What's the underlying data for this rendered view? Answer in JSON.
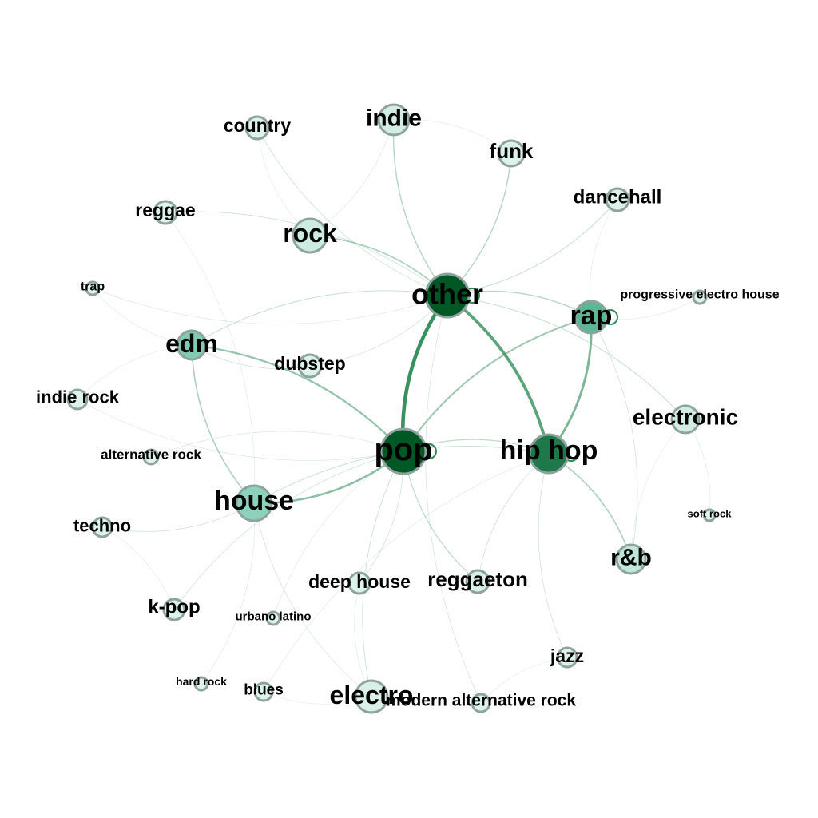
{
  "graph": {
    "nodes": [
      {
        "id": "other",
        "label": "other",
        "weight": 1.0
      },
      {
        "id": "pop",
        "label": "pop",
        "weight": 1.0
      },
      {
        "id": "hip hop",
        "label": "hip hop",
        "weight": 0.85
      },
      {
        "id": "rap",
        "label": "rap",
        "weight": 0.55
      },
      {
        "id": "edm",
        "label": "edm",
        "weight": 0.4
      },
      {
        "id": "house",
        "label": "house",
        "weight": 0.35
      },
      {
        "id": "rock",
        "label": "rock",
        "weight": 0.1
      },
      {
        "id": "indie",
        "label": "indie",
        "weight": 0.08
      },
      {
        "id": "electronic",
        "label": "electronic",
        "weight": 0.08
      },
      {
        "id": "r&b",
        "label": "r&b",
        "weight": 0.15
      },
      {
        "id": "electro",
        "label": "electro",
        "weight": 0.05
      },
      {
        "id": "reggaeton",
        "label": "reggaeton",
        "weight": 0.05
      },
      {
        "id": "funk",
        "label": "funk",
        "weight": 0.04
      },
      {
        "id": "dancehall",
        "label": "dancehall",
        "weight": 0.04
      },
      {
        "id": "country",
        "label": "country",
        "weight": 0.03
      },
      {
        "id": "reggae",
        "label": "reggae",
        "weight": 0.03
      },
      {
        "id": "dubstep",
        "label": "dubstep",
        "weight": 0.03
      },
      {
        "id": "deep house",
        "label": "deep house",
        "weight": 0.03
      },
      {
        "id": "k-pop",
        "label": "k-pop",
        "weight": 0.03
      },
      {
        "id": "techno",
        "label": "techno",
        "weight": 0.03
      },
      {
        "id": "indie rock",
        "label": "indie rock",
        "weight": 0.03
      },
      {
        "id": "jazz",
        "label": "jazz",
        "weight": 0.03
      },
      {
        "id": "modern alternative rock",
        "label": "modern alternative rock",
        "weight": 0.03
      },
      {
        "id": "blues",
        "label": "blues",
        "weight": 0.03
      },
      {
        "id": "trap",
        "label": "trap",
        "weight": 0.02
      },
      {
        "id": "alternative rock",
        "label": "alternative rock",
        "weight": 0.02
      },
      {
        "id": "urbano latino",
        "label": "urbano latino",
        "weight": 0.02
      },
      {
        "id": "hard rock",
        "label": "hard rock",
        "weight": 0.02
      },
      {
        "id": "soft rock",
        "label": "soft rock",
        "weight": 0.02
      },
      {
        "id": "progressive electro house",
        "label": "progressive electro house",
        "weight": 0.02
      }
    ],
    "edges": [
      {
        "source": "other",
        "target": "pop",
        "weight": 1.0
      },
      {
        "source": "other",
        "target": "hip hop",
        "weight": 0.8
      },
      {
        "source": "hip hop",
        "target": "rap",
        "weight": 0.6
      },
      {
        "source": "pop",
        "target": "house",
        "weight": 0.5
      },
      {
        "source": "pop",
        "target": "edm",
        "weight": 0.45
      },
      {
        "source": "pop",
        "target": "rap",
        "weight": 0.4
      },
      {
        "source": "other",
        "target": "rock",
        "weight": 0.3
      },
      {
        "source": "other",
        "target": "indie",
        "weight": 0.25
      },
      {
        "source": "other",
        "target": "funk",
        "weight": 0.25
      },
      {
        "source": "hip hop",
        "target": "r&b",
        "weight": 0.3
      },
      {
        "source": "edm",
        "target": "house",
        "weight": 0.3
      },
      {
        "source": "other",
        "target": "rap",
        "weight": 0.25
      },
      {
        "source": "pop",
        "target": "reggaeton",
        "weight": 0.2
      },
      {
        "source": "pop",
        "target": "hip hop",
        "weight": 0.2
      },
      {
        "source": "other",
        "target": "edm",
        "weight": 0.15
      },
      {
        "source": "other",
        "target": "electronic",
        "weight": 0.15
      },
      {
        "source": "other",
        "target": "dancehall",
        "weight": 0.15
      },
      {
        "source": "house",
        "target": "hip hop",
        "weight": 0.15
      },
      {
        "source": "pop",
        "target": "electro",
        "weight": 0.12
      },
      {
        "source": "other",
        "target": "country",
        "weight": 0.1
      },
      {
        "source": "other",
        "target": "reggae",
        "weight": 0.1
      },
      {
        "source": "other",
        "target": "dubstep",
        "weight": 0.1
      },
      {
        "source": "hip hop",
        "target": "jazz",
        "weight": 0.1
      },
      {
        "source": "pop",
        "target": "deep house",
        "weight": 0.1
      },
      {
        "source": "pop",
        "target": "k-pop",
        "weight": 0.1
      },
      {
        "source": "house",
        "target": "techno",
        "weight": 0.1
      },
      {
        "source": "edm",
        "target": "dubstep",
        "weight": 0.1
      },
      {
        "source": "rap",
        "target": "r&b",
        "weight": 0.1
      },
      {
        "source": "hip hop",
        "target": "reggaeton",
        "weight": 0.1
      },
      {
        "source": "electro",
        "target": "house",
        "weight": 0.08
      },
      {
        "source": "other",
        "target": "modern alternative rock",
        "weight": 0.08
      },
      {
        "source": "pop",
        "target": "indie rock",
        "weight": 0.06
      },
      {
        "source": "pop",
        "target": "alternative rock",
        "weight": 0.06
      },
      {
        "source": "other",
        "target": "trap",
        "weight": 0.05
      },
      {
        "source": "rap",
        "target": "progressive electro house",
        "weight": 0.05
      },
      {
        "source": "electronic",
        "target": "soft rock",
        "weight": 0.05
      },
      {
        "source": "pop",
        "target": "urbano latino",
        "weight": 0.05
      },
      {
        "source": "house",
        "target": "hard rock",
        "weight": 0.05
      },
      {
        "source": "hip hop",
        "target": "blues",
        "weight": 0.05
      },
      {
        "source": "edm",
        "target": "trap",
        "weight": 0.05
      },
      {
        "source": "rock",
        "target": "indie",
        "weight": 0.05
      },
      {
        "source": "indie",
        "target": "funk",
        "weight": 0.04
      },
      {
        "source": "electronic",
        "target": "r&b",
        "weight": 0.04
      },
      {
        "source": "techno",
        "target": "k-pop",
        "weight": 0.04
      },
      {
        "source": "dancehall",
        "target": "rap",
        "weight": 0.04
      },
      {
        "source": "reggae",
        "target": "house",
        "weight": 0.04
      },
      {
        "source": "country",
        "target": "rock",
        "weight": 0.04
      },
      {
        "source": "indie rock",
        "target": "edm",
        "weight": 0.04
      },
      {
        "source": "deep house",
        "target": "electro",
        "weight": 0.04
      },
      {
        "source": "modern alternative rock",
        "target": "jazz",
        "weight": 0.03
      },
      {
        "source": "blues",
        "target": "electro",
        "weight": 0.03
      }
    ],
    "self_loops": [
      "other",
      "pop",
      "hip hop",
      "rap"
    ]
  },
  "colors": {
    "scale_low": "#e5f5f0",
    "scale_mid": "#66c2a4",
    "scale_high": "#005824",
    "node_stroke": "#8fa39e",
    "edge": "#2e8b57",
    "label": "#000000"
  }
}
